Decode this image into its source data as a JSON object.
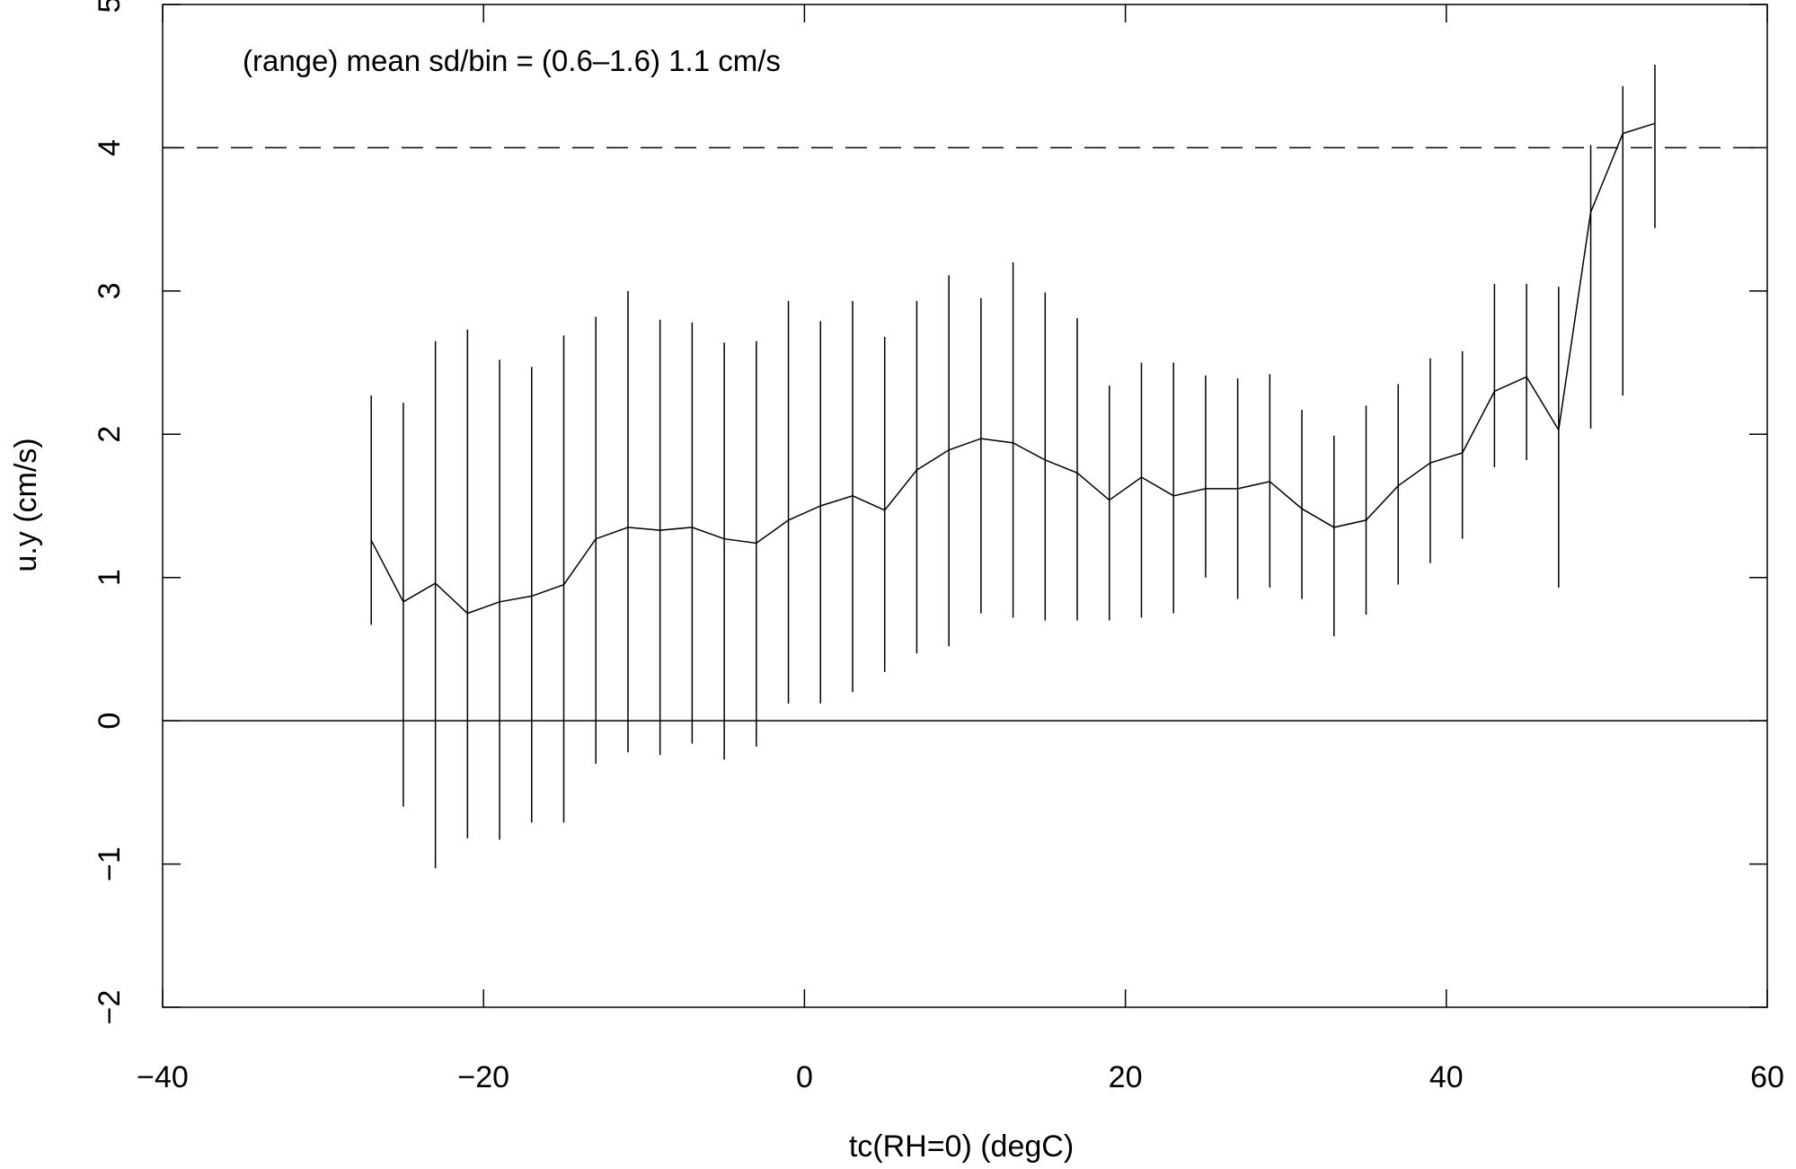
{
  "chart_data": {
    "type": "line",
    "title": "",
    "xlabel": "tc(RH=0) (degC)",
    "ylabel": "u.y (cm/s)",
    "xlim": [
      -40,
      60
    ],
    "ylim": [
      -2,
      5
    ],
    "xticks": [
      -40,
      -20,
      0,
      20,
      40,
      60
    ],
    "yticks": [
      -2,
      -1,
      0,
      1,
      2,
      3,
      4,
      5
    ],
    "grid": false,
    "annotation": "(range) mean sd/bin = (0.6–1.6) 1.1 cm/s",
    "reference_lines": [
      {
        "y": 4,
        "style": "dashed"
      },
      {
        "y": 0,
        "style": "solid"
      }
    ],
    "series": [
      {
        "x": [
          -27,
          -25,
          -23,
          -21,
          -19,
          -17,
          -15,
          -13,
          -11,
          -9,
          -7,
          -5,
          -3,
          -1,
          1,
          3,
          5,
          7,
          9,
          11,
          13,
          15,
          17,
          19,
          21,
          23,
          25,
          27,
          29,
          31,
          33,
          35,
          37,
          39,
          41,
          43,
          45,
          47,
          49,
          51,
          53
        ],
        "y": [
          1.26,
          0.83,
          0.96,
          0.75,
          0.83,
          0.87,
          0.95,
          1.27,
          1.35,
          1.33,
          1.35,
          1.27,
          1.24,
          1.4,
          1.5,
          1.57,
          1.47,
          1.75,
          1.89,
          1.97,
          1.94,
          1.82,
          1.73,
          1.54,
          1.7,
          1.57,
          1.62,
          1.62,
          1.67,
          1.48,
          1.35,
          1.4,
          1.64,
          1.8,
          1.87,
          2.3,
          2.4,
          2.03,
          3.55,
          4.1,
          4.17
        ],
        "lower": [
          0.67,
          -0.6,
          -1.03,
          -0.82,
          -0.83,
          -0.71,
          -0.71,
          -0.3,
          -0.22,
          -0.24,
          -0.16,
          -0.27,
          -0.18,
          0.12,
          0.12,
          0.2,
          0.34,
          0.47,
          0.52,
          0.75,
          0.72,
          0.7,
          0.7,
          0.7,
          0.72,
          0.75,
          1.0,
          0.85,
          0.93,
          0.85,
          0.59,
          0.74,
          0.95,
          1.1,
          1.27,
          1.77,
          1.82,
          0.93,
          2.04,
          2.27,
          3.44
        ],
        "upper": [
          2.27,
          2.22,
          2.65,
          2.73,
          2.52,
          2.47,
          2.69,
          2.82,
          3.0,
          2.8,
          2.78,
          2.64,
          2.65,
          2.93,
          2.79,
          2.93,
          2.68,
          2.93,
          3.11,
          2.95,
          3.2,
          2.99,
          2.81,
          2.34,
          2.5,
          2.5,
          2.41,
          2.39,
          2.42,
          2.17,
          1.99,
          2.2,
          2.35,
          2.53,
          2.58,
          3.05,
          3.05,
          3.03,
          4.02,
          4.43,
          4.58
        ]
      }
    ]
  }
}
